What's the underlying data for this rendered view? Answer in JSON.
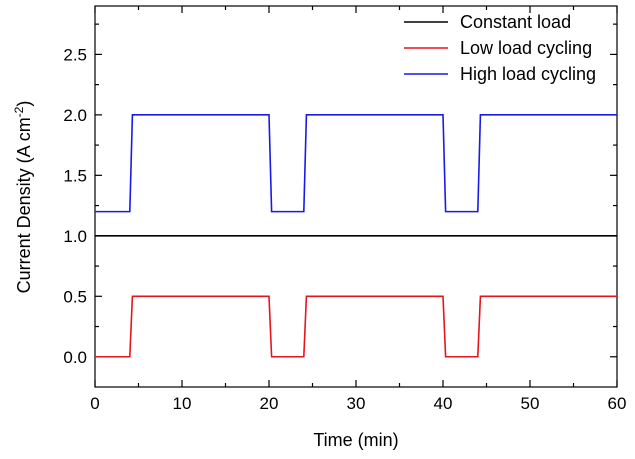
{
  "chart_data": {
    "type": "line",
    "title": "",
    "xlabel": "Time (min)",
    "ylabel_main": "Current Density (A cm",
    "ylabel_sup": "-2",
    "ylabel_close": ")",
    "xlim": [
      0,
      60
    ],
    "ylim": [
      -0.25,
      2.9
    ],
    "xticks": [
      0,
      10,
      20,
      30,
      40,
      50,
      60
    ],
    "xtick_labels": [
      "0",
      "10",
      "20",
      "30",
      "40",
      "50",
      "60"
    ],
    "yticks": [
      0.0,
      0.5,
      1.0,
      1.5,
      2.0,
      2.5
    ],
    "ytick_labels": [
      "0.0",
      "0.5",
      "1.0",
      "1.5",
      "2.0",
      "2.5"
    ],
    "grid": false,
    "legend_position": "top-right",
    "series": [
      {
        "name": "Constant load",
        "color": "#000000",
        "x": [
          0,
          60
        ],
        "y": [
          1.0,
          1.0
        ]
      },
      {
        "name": "Low load cycling",
        "color": "#e8141c",
        "x": [
          0,
          4,
          4.3,
          20,
          20.3,
          24,
          24.3,
          40,
          40.3,
          44,
          44.3,
          60
        ],
        "y": [
          0.0,
          0.0,
          0.5,
          0.5,
          0.0,
          0.0,
          0.5,
          0.5,
          0.0,
          0.0,
          0.5,
          0.5
        ]
      },
      {
        "name": "High load cycling",
        "color": "#1a1ae6",
        "x": [
          0,
          4,
          4.3,
          20,
          20.3,
          24,
          24.3,
          40,
          40.3,
          44,
          44.3,
          60
        ],
        "y": [
          1.2,
          1.2,
          2.0,
          2.0,
          1.2,
          1.2,
          2.0,
          2.0,
          1.2,
          1.2,
          2.0,
          2.0
        ]
      }
    ]
  }
}
